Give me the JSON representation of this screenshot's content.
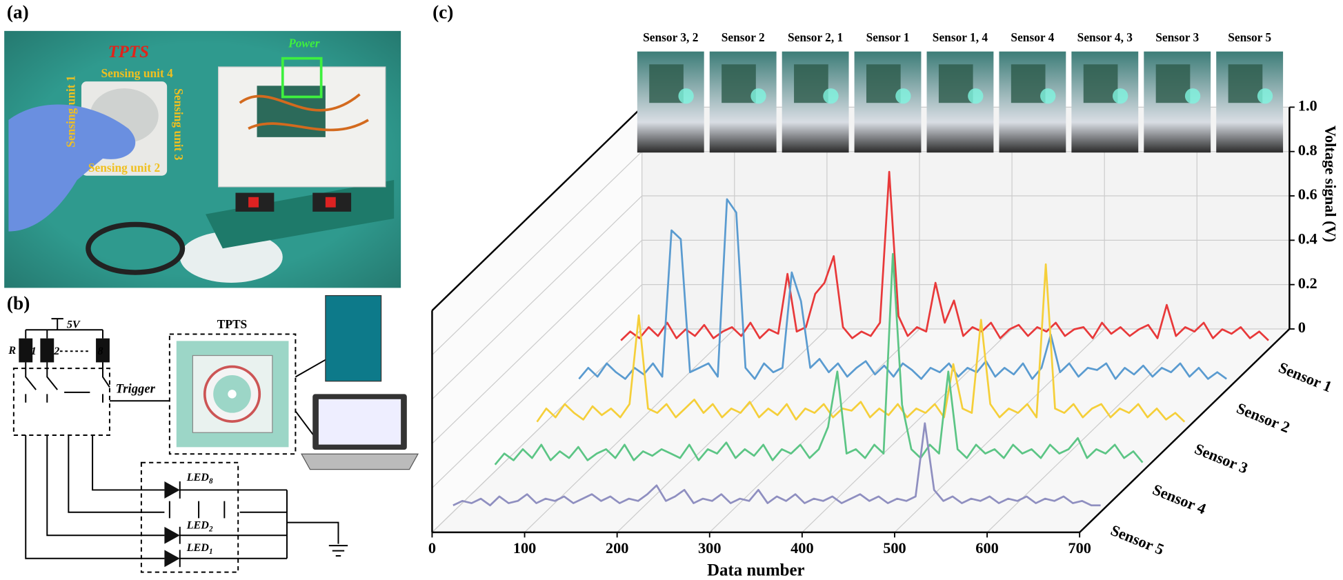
{
  "panel_labels": [
    "(a)",
    "(b)",
    "(c)"
  ],
  "photo_a": {
    "tpts": "TPTS",
    "power": "Power",
    "units": [
      "Sensing unit 1",
      "Sensing unit 4",
      "Sensing unit 3",
      "Sensing unit 2"
    ]
  },
  "circuit": {
    "supply": "5V",
    "switch_numbers": [
      "1",
      "2",
      "8"
    ],
    "resistor": "R",
    "trigger": "Trigger",
    "module": "TPTS",
    "leds": [
      {
        "text": "LED",
        "sub": "8"
      },
      {
        "text": "LED",
        "sub": "2"
      },
      {
        "text": "LED",
        "sub": "1"
      }
    ]
  },
  "chart_data": {
    "type": "line",
    "xlabel": "Data number",
    "ylabel": "Voltage signal (V)",
    "image_labels": [
      "Sensor 3, 2",
      "Sensor  2",
      "Sensor 2, 1",
      "Sensor 1",
      "Sensor 1, 4",
      "Sensor 4",
      "Sensor 4, 3",
      "Sensor 3",
      "Sensor 5"
    ],
    "x": [
      0,
      10,
      20,
      30,
      40,
      50,
      60,
      70,
      80,
      90,
      100,
      110,
      120,
      130,
      140,
      150,
      160,
      170,
      180,
      190,
      200,
      210,
      220,
      230,
      240,
      250,
      260,
      270,
      280,
      290,
      300,
      310,
      320,
      330,
      340,
      350,
      360,
      370,
      380,
      390,
      400,
      410,
      420,
      430,
      440,
      450,
      460,
      470,
      480,
      490,
      500,
      510,
      520,
      530,
      540,
      550,
      560,
      570,
      580,
      590,
      600,
      610,
      620,
      630,
      640,
      650,
      660,
      670,
      680,
      690,
      700
    ],
    "xlim": [
      0,
      700
    ],
    "xticks": [
      0,
      100,
      200,
      300,
      400,
      500,
      600,
      700
    ],
    "ylim": [
      0,
      1
    ],
    "yticks": [
      0,
      0.2,
      0.4,
      0.6,
      0.8,
      {
        "value": 1,
        "label": "1.0"
      }
    ],
    "grid": true,
    "series": [
      {
        "name": "Sensor 1",
        "color": "#e8393a",
        "values": [
          0.04,
          0.08,
          0.05,
          0.1,
          0.06,
          0.12,
          0.05,
          0.09,
          0.06,
          0.11,
          0.05,
          0.08,
          0.1,
          0.06,
          0.12,
          0.05,
          0.09,
          0.07,
          0.34,
          0.08,
          0.1,
          0.25,
          0.3,
          0.42,
          0.1,
          0.05,
          0.08,
          0.06,
          0.12,
          0.8,
          0.15,
          0.06,
          0.1,
          0.08,
          0.3,
          0.12,
          0.22,
          0.06,
          0.1,
          0.08,
          0.12,
          0.05,
          0.09,
          0.11,
          0.06,
          0.1,
          0.08,
          0.12,
          0.06,
          0.09,
          0.1,
          0.05,
          0.12,
          0.07,
          0.1,
          0.06,
          0.09,
          0.11,
          0.05,
          0.2,
          0.06,
          0.1,
          0.08,
          0.12,
          0.05,
          0.09,
          0.07,
          0.1,
          0.05,
          0.08,
          0.04
        ]
      },
      {
        "name": "Sensor 2",
        "color": "#5a9bd0",
        "values": [
          0.05,
          0.1,
          0.06,
          0.12,
          0.08,
          0.05,
          0.1,
          0.07,
          0.12,
          0.06,
          0.72,
          0.68,
          0.08,
          0.1,
          0.12,
          0.06,
          0.86,
          0.8,
          0.1,
          0.05,
          0.12,
          0.08,
          0.1,
          0.53,
          0.4,
          0.1,
          0.14,
          0.08,
          0.12,
          0.06,
          0.1,
          0.13,
          0.07,
          0.11,
          0.06,
          0.12,
          0.09,
          0.05,
          0.1,
          0.08,
          0.12,
          0.06,
          0.1,
          0.08,
          0.13,
          0.06,
          0.1,
          0.07,
          0.12,
          0.05,
          0.1,
          0.25,
          0.08,
          0.12,
          0.06,
          0.1,
          0.09,
          0.12,
          0.05,
          0.1,
          0.07,
          0.11,
          0.06,
          0.1,
          0.08,
          0.12,
          0.06,
          0.1,
          0.05,
          0.08,
          0.05
        ]
      },
      {
        "name": "Sensor 3",
        "color": "#f5cf3a",
        "values": [
          0.04,
          0.1,
          0.06,
          0.12,
          0.08,
          0.05,
          0.11,
          0.07,
          0.1,
          0.06,
          0.12,
          0.52,
          0.1,
          0.08,
          0.12,
          0.06,
          0.1,
          0.14,
          0.08,
          0.12,
          0.06,
          0.1,
          0.08,
          0.13,
          0.06,
          0.1,
          0.07,
          0.12,
          0.05,
          0.1,
          0.08,
          0.12,
          0.06,
          0.1,
          0.09,
          0.13,
          0.06,
          0.1,
          0.07,
          0.12,
          0.06,
          0.1,
          0.08,
          0.12,
          0.06,
          0.3,
          0.1,
          0.08,
          0.5,
          0.12,
          0.06,
          0.1,
          0.08,
          0.12,
          0.06,
          0.75,
          0.1,
          0.08,
          0.12,
          0.06,
          0.1,
          0.12,
          0.06,
          0.1,
          0.08,
          0.12,
          0.06,
          0.1,
          0.05,
          0.08,
          0.04
        ]
      },
      {
        "name": "Sensor 4",
        "color": "#5cc585",
        "values": [
          0.03,
          0.08,
          0.05,
          0.1,
          0.06,
          0.12,
          0.05,
          0.09,
          0.06,
          0.11,
          0.05,
          0.08,
          0.1,
          0.06,
          0.12,
          0.05,
          0.09,
          0.07,
          0.1,
          0.08,
          0.06,
          0.12,
          0.05,
          0.1,
          0.08,
          0.13,
          0.06,
          0.1,
          0.07,
          0.12,
          0.05,
          0.1,
          0.08,
          0.12,
          0.06,
          0.1,
          0.2,
          0.45,
          0.08,
          0.1,
          0.06,
          0.12,
          0.08,
          0.98,
          0.3,
          0.1,
          0.06,
          0.12,
          0.08,
          0.45,
          0.1,
          0.06,
          0.12,
          0.08,
          0.1,
          0.06,
          0.12,
          0.08,
          0.1,
          0.06,
          0.12,
          0.08,
          0.1,
          0.15,
          0.06,
          0.1,
          0.08,
          0.12,
          0.06,
          0.09,
          0.04
        ]
      },
      {
        "name": "Sensor 5",
        "color": "#8f8fc0",
        "values": [
          0.03,
          0.05,
          0.04,
          0.06,
          0.03,
          0.07,
          0.04,
          0.05,
          0.08,
          0.04,
          0.06,
          0.05,
          0.07,
          0.04,
          0.06,
          0.08,
          0.05,
          0.07,
          0.04,
          0.06,
          0.05,
          0.08,
          0.12,
          0.05,
          0.07,
          0.1,
          0.04,
          0.06,
          0.05,
          0.08,
          0.04,
          0.06,
          0.05,
          0.1,
          0.04,
          0.07,
          0.05,
          0.08,
          0.04,
          0.06,
          0.05,
          0.07,
          0.04,
          0.06,
          0.08,
          0.05,
          0.07,
          0.04,
          0.06,
          0.05,
          0.07,
          0.4,
          0.1,
          0.05,
          0.07,
          0.04,
          0.06,
          0.05,
          0.07,
          0.04,
          0.06,
          0.05,
          0.07,
          0.04,
          0.06,
          0.05,
          0.07,
          0.04,
          0.05,
          0.03,
          0.03
        ]
      }
    ]
  }
}
